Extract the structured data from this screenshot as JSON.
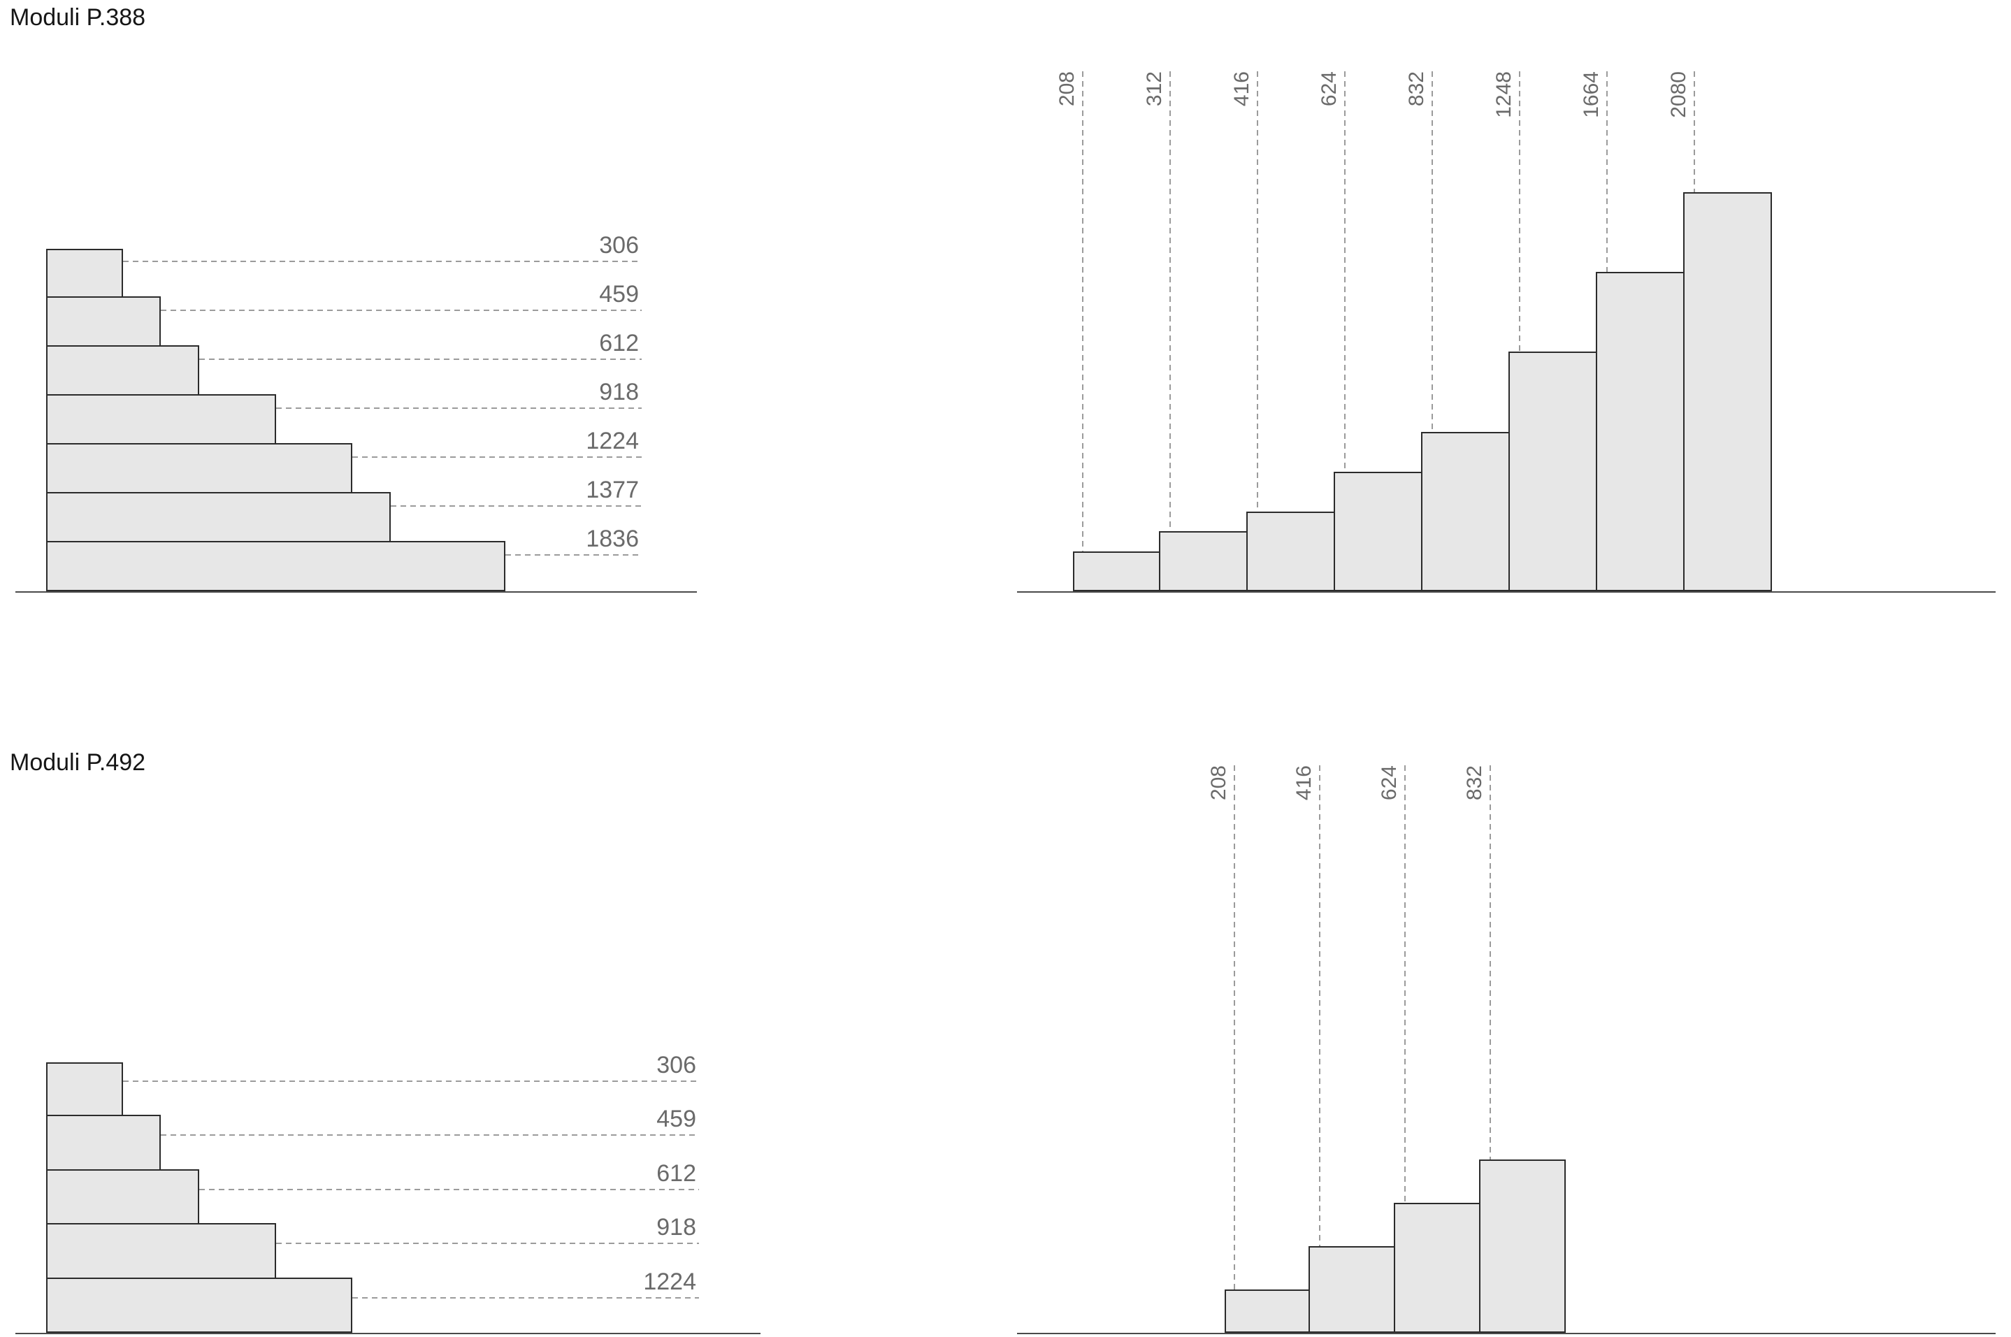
{
  "page": {
    "background": "#ffffff"
  },
  "colors": {
    "bar_fill": "#e7e7e7",
    "bar_border": "#2b2b2b",
    "dash_line": "#9b9b9b",
    "value_label": "#6a6a6a",
    "baseline": "#4a4a4a",
    "title": "#161616"
  },
  "titles": [
    {
      "text": "Moduli P.388"
    },
    {
      "text": "Moduli P.492"
    }
  ],
  "chart_data": [
    {
      "id": "p388-horizontal-staircase",
      "type": "bar",
      "orientation": "horizontal",
      "title": "Moduli P.388",
      "categories": [
        "306",
        "459",
        "612",
        "918",
        "1224",
        "1377",
        "1836"
      ],
      "values": [
        306,
        459,
        612,
        918,
        1224,
        1377,
        1836
      ],
      "labels": [
        "306",
        "459",
        "612",
        "918",
        "1224",
        "1377",
        "1836"
      ],
      "xlabel": "",
      "ylabel": "",
      "grid": "off",
      "legend": "none",
      "annotation_style": "dashed leader line from bar end to right-aligned label"
    },
    {
      "id": "p388-vertical-steps",
      "type": "bar",
      "orientation": "vertical",
      "title": "Moduli P.388",
      "categories": [
        "208",
        "312",
        "416",
        "624",
        "832",
        "1248",
        "1664",
        "2080"
      ],
      "values": [
        208,
        312,
        416,
        624,
        832,
        1248,
        1664,
        2080
      ],
      "labels": [
        "208",
        "312",
        "416",
        "624",
        "832",
        "1248",
        "1664",
        "2080"
      ],
      "xlabel": "",
      "ylabel": "",
      "grid": "off",
      "legend": "none",
      "annotation_style": "rotated label at top with dashed vertical line down to bar top"
    },
    {
      "id": "p492-horizontal-staircase",
      "type": "bar",
      "orientation": "horizontal",
      "title": "Moduli P.492",
      "categories": [
        "306",
        "459",
        "612",
        "918",
        "1224"
      ],
      "values": [
        306,
        459,
        612,
        918,
        1224
      ],
      "labels": [
        "306",
        "459",
        "612",
        "918",
        "1224"
      ],
      "xlabel": "",
      "ylabel": "",
      "grid": "off",
      "legend": "none",
      "annotation_style": "dashed leader line from bar end to right-aligned label"
    },
    {
      "id": "p492-vertical-steps",
      "type": "bar",
      "orientation": "vertical",
      "title": "Moduli P.492",
      "categories": [
        "208",
        "416",
        "624",
        "832"
      ],
      "values": [
        208,
        416,
        624,
        832
      ],
      "labels": [
        "208",
        "416",
        "624",
        "832"
      ],
      "xlabel": "",
      "ylabel": "",
      "grid": "off",
      "legend": "none",
      "annotation_style": "rotated label at top with dashed vertical line down to bar top"
    }
  ]
}
